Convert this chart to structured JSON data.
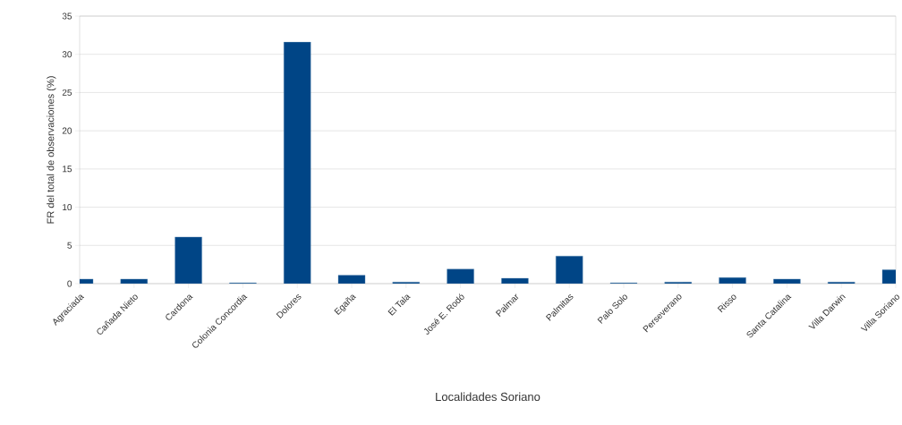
{
  "chart_data": {
    "type": "bar",
    "xlabel": "Localidades Soriano",
    "ylabel": "FR del total de observaciones (%)",
    "categories": [
      "Agraciada",
      "Cañada Nieto",
      "Cardona",
      "Colonia Concordia",
      "Dolores",
      "Egaña",
      "El Tala",
      "José E. Rodó",
      "Palmar",
      "Palmitas",
      "Palo Solo",
      "Perseverano",
      "Risso",
      "Santa Catalina",
      "Villa Darwin",
      "Villa Soriano"
    ],
    "values": [
      0.6,
      0.6,
      6.1,
      0.1,
      31.6,
      1.1,
      0.2,
      1.9,
      0.7,
      3.6,
      0.1,
      0.2,
      0.8,
      0.6,
      0.2,
      1.8
    ],
    "color": "#004586",
    "ylim": [
      0,
      35
    ],
    "yticks": [
      0,
      5,
      10,
      15,
      20,
      25,
      30,
      35
    ],
    "grid": "y"
  }
}
